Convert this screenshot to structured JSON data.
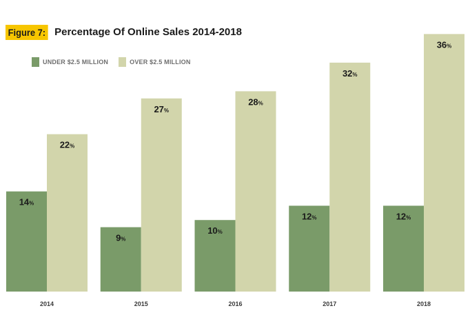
{
  "figure": {
    "tag": "Figure 7:",
    "title": "Percentage Of Online Sales 2014-2018"
  },
  "colors": {
    "under": "#7a9b69",
    "over": "#d2d5ab",
    "tag_bg": "#f7c600",
    "axis_text": "#3a3a3a"
  },
  "chart_data": {
    "type": "bar",
    "title": "Percentage Of Online Sales 2014-2018",
    "categories": [
      "2014",
      "2015",
      "2016",
      "2017",
      "2018"
    ],
    "series": [
      {
        "name": "UNDER $2.5 MILLION",
        "values": [
          14,
          9,
          10,
          12,
          12
        ]
      },
      {
        "name": "OVER $2.5 MILLION",
        "values": [
          22,
          27,
          28,
          32,
          36
        ]
      }
    ],
    "value_suffix": "%",
    "ylim": [
      0,
      37
    ],
    "grid": false,
    "legend_position": "top-left",
    "xlabel": "",
    "ylabel": ""
  }
}
